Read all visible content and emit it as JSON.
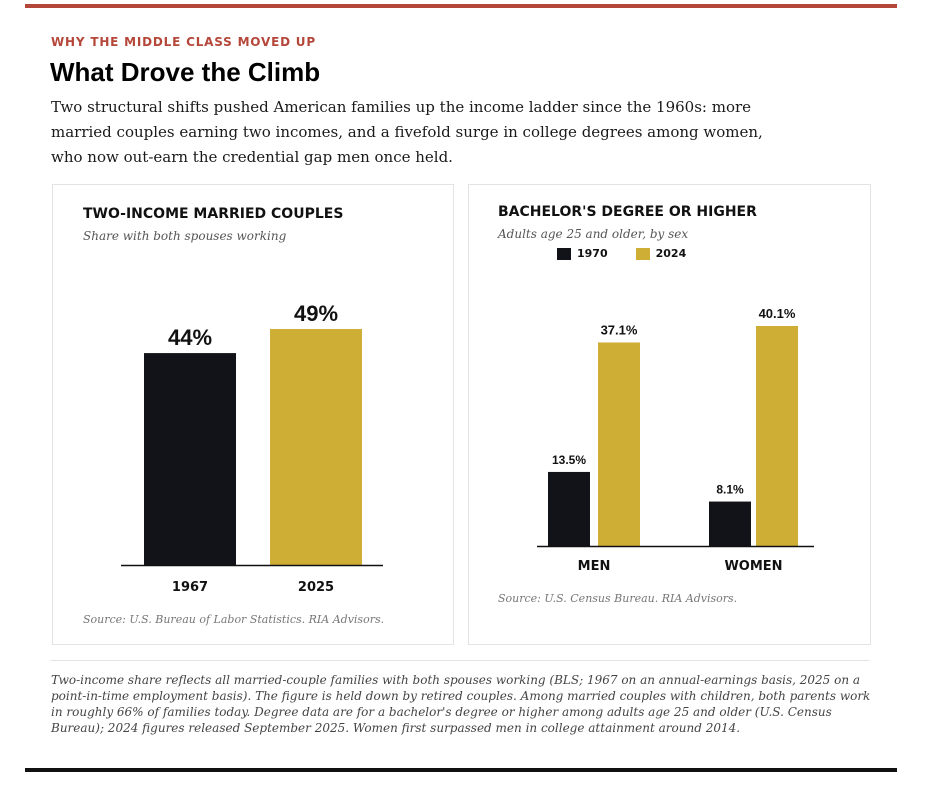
{
  "kicker": "WHY THE MIDDLE CLASS MOVED UP",
  "headline": "What Drove the Climb",
  "dek": "Two structural shifts pushed American families up the income ladder since the 1960s: more married couples earning two incomes, and a fivefold surge in college degrees among women, who now out-earn the credential gap men once held.",
  "colors": {
    "dark": "#111318",
    "gold": "#cfae35",
    "accent": "#b5473a"
  },
  "chart_data": [
    {
      "type": "bar",
      "title": "TWO-INCOME MARRIED COUPLES",
      "subtitle": "Share with both spouses working",
      "categories": [
        "1967",
        "2025"
      ],
      "values": [
        44,
        49
      ],
      "value_labels": [
        "44%",
        "49%"
      ],
      "unit": "%",
      "ylim": [
        0,
        49
      ],
      "source": "Source: U.S. Bureau of Labor Statistics. RIA Advisors.",
      "grid": false
    },
    {
      "type": "bar",
      "title": "BACHELOR'S DEGREE OR HIGHER",
      "subtitle": "Adults age 25 and older, by sex",
      "categories": [
        "MEN",
        "WOMEN"
      ],
      "series": [
        {
          "name": "1970",
          "values": [
            13.5,
            8.1
          ],
          "labels": [
            "13.5%",
            "8.1%"
          ]
        },
        {
          "name": "2024",
          "values": [
            37.1,
            40.1
          ],
          "labels": [
            "37.1%",
            "40.1%"
          ]
        }
      ],
      "unit": "%",
      "ylim": [
        0,
        40.1
      ],
      "legend": "top-left",
      "source": "Source: U.S. Census Bureau. RIA Advisors.",
      "grid": false
    }
  ],
  "footnote": "Two-income share reflects all married-couple families with both spouses working (BLS; 1967 on an annual-earnings basis, 2025 on a point-in-time employment basis). The figure is held down by retired couples. Among married couples with children, both parents work in roughly 66% of families today. Degree data are for a bachelor's degree or higher among adults age 25 and older (U.S. Census Bureau); 2024 figures released September 2025. Women first surpassed men in college attainment around 2014."
}
